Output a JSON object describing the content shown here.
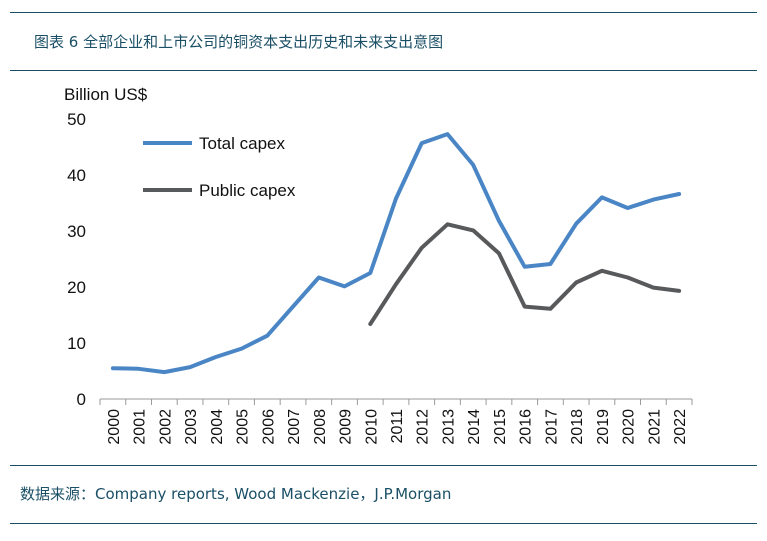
{
  "caption": "图表 6 全部企业和上市公司的铜资本支出历史和未来支出意图",
  "source": "数据来源：Company reports, Wood Mackenzie，J.P.Morgan",
  "chart_data": {
    "type": "line",
    "ylabel": "Billion US$",
    "ylim": [
      0,
      50
    ],
    "yticks": [
      0,
      10,
      20,
      30,
      40,
      50
    ],
    "grid": false,
    "legend_position": "top-left",
    "x": [
      "2000",
      "2001",
      "2002",
      "2003",
      "2004",
      "2005",
      "2006",
      "2007",
      "2008",
      "2009",
      "2010",
      "2011",
      "2012",
      "2013",
      "2014",
      "2015",
      "2016",
      "2017",
      "2018",
      "2019",
      "2020",
      "2021",
      "2022"
    ],
    "series": [
      {
        "name": "Total capex",
        "color": "#4a86c5",
        "values": [
          5.5,
          5.4,
          4.8,
          5.7,
          7.5,
          9.0,
          11.3,
          16.5,
          21.7,
          20.1,
          22.5,
          35.8,
          45.7,
          47.3,
          41.8,
          31.8,
          23.6,
          24.1,
          31.3,
          36.0,
          34.1,
          35.6,
          36.6
        ]
      },
      {
        "name": "Public capex",
        "color": "#58595b",
        "values": [
          null,
          null,
          null,
          null,
          null,
          null,
          null,
          null,
          null,
          null,
          13.4,
          20.5,
          27.0,
          31.2,
          30.1,
          26.0,
          16.5,
          16.1,
          20.8,
          22.9,
          21.7,
          19.9,
          19.3
        ]
      }
    ]
  }
}
